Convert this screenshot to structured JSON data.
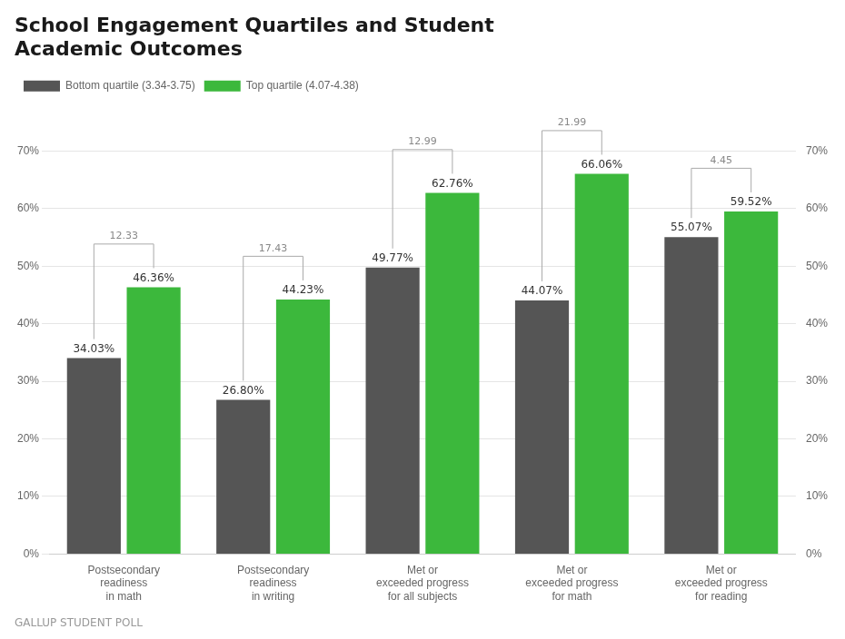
{
  "chart_data": {
    "type": "bar",
    "title": [
      "School Engagement Quartiles and Student",
      "Academic Outcomes"
    ],
    "subtitle": "GALLUP STUDENT POLL",
    "categories": [
      "Postsecondary\nreadiness\nin math",
      "Postsecondary\nreadiness\nin writing",
      "Met or\nexceeded progress\nfor all subjects",
      "Met or\nexceeded progress\nfor math",
      "Met or\nexceeded progress\nfor reading"
    ],
    "series": [
      {
        "name": "Bottom quartile (3.34-3.75)",
        "color": "#555555",
        "values": [
          34.03,
          26.8,
          49.77,
          44.07,
          55.07
        ],
        "value_labels": [
          "34.03%",
          "26.80%",
          "49.77%",
          "44.07%",
          "55.07%"
        ]
      },
      {
        "name": "Top quartile (4.07-4.38)",
        "color": "#3cb83c",
        "values": [
          46.36,
          44.23,
          62.76,
          66.06,
          59.52
        ],
        "value_labels": [
          "46.36%",
          "44.23%",
          "62.76%",
          "66.06%",
          "59.52%"
        ]
      }
    ],
    "differences": [
      12.33,
      17.43,
      12.99,
      21.99,
      4.45
    ],
    "ylim": [
      0,
      75
    ],
    "yticks": [
      {
        "value": 0,
        "label": "0%"
      },
      {
        "value": 10,
        "label": "10%"
      },
      {
        "value": 20,
        "label": "20%"
      },
      {
        "value": 30,
        "label": "30%"
      },
      {
        "value": 40,
        "label": "40%"
      },
      {
        "value": 50,
        "label": "50%"
      },
      {
        "value": 60,
        "label": "60%"
      },
      {
        "value": 70,
        "label": "70%"
      }
    ],
    "y2lim": [
      0,
      75
    ],
    "y2ticks": [
      {
        "value": 0,
        "label": "0%"
      },
      {
        "value": 10,
        "label": "10%"
      },
      {
        "value": 20,
        "label": "20%"
      },
      {
        "value": 30,
        "label": "30%"
      },
      {
        "value": 40,
        "label": "40%"
      },
      {
        "value": 50,
        "label": "50%"
      },
      {
        "value": 60,
        "label": "60%"
      },
      {
        "value": 70,
        "label": "70%"
      }
    ],
    "grid": true,
    "legend": "top",
    "data_labels": true
  }
}
